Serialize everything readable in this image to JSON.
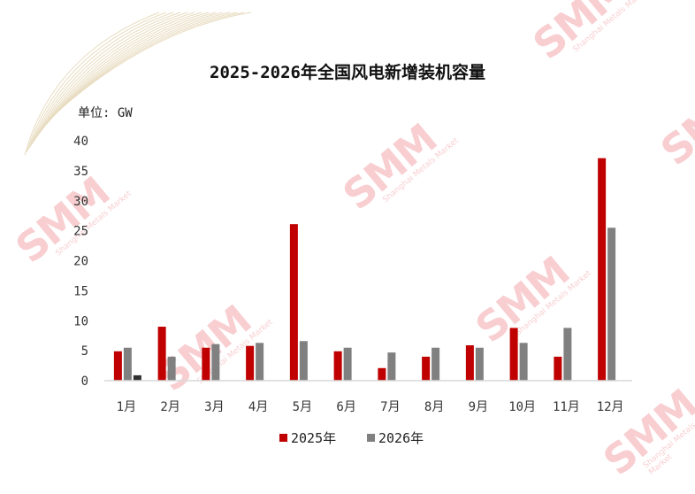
{
  "chart_data": {
    "type": "bar",
    "title": "2025-2026年全国风电新增装机容量",
    "unit_label": "单位: GW",
    "categories": [
      "1月",
      "2月",
      "3月",
      "4月",
      "5月",
      "6月",
      "7月",
      "8月",
      "9月",
      "10月",
      "11月",
      "12月"
    ],
    "series": [
      {
        "name": "2025年",
        "color": "#c00000",
        "values": [
          4.9,
          9.0,
          5.5,
          5.8,
          26.1,
          4.9,
          2.1,
          4.0,
          5.9,
          8.8,
          4.0,
          37.1
        ]
      },
      {
        "name": "2026年",
        "color": "#808080",
        "values": [
          5.5,
          4.0,
          6.1,
          6.3,
          6.6,
          5.5,
          4.7,
          5.5,
          5.5,
          6.3,
          8.8,
          25.5
        ]
      },
      {
        "color": "#303030",
        "values": [
          0.9,
          null,
          null,
          null,
          null,
          null,
          null,
          null,
          null,
          null,
          null,
          null
        ]
      }
    ],
    "ylim": [
      0,
      40
    ],
    "yticks": [
      0,
      5,
      10,
      15,
      20,
      25,
      30,
      35,
      40
    ],
    "legend_position": "bottom",
    "grid": false
  },
  "watermark": {
    "logo": "SMM",
    "text": "Shanghai Metals Market"
  }
}
